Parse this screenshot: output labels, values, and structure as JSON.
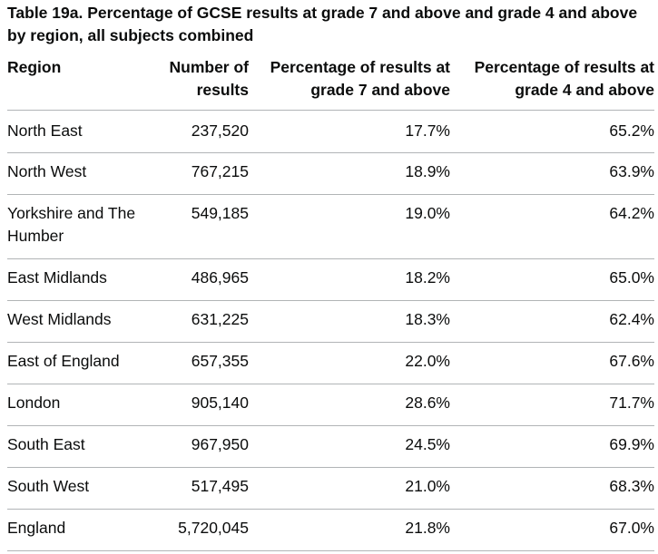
{
  "caption": "Table 19a. Percentage of GCSE results at grade 7 and above and grade 4 and above by region, all subjects combined",
  "headers": {
    "region": "Region",
    "count": "Number of results",
    "grade7": "Percentage of results at grade 7 and above",
    "grade4": "Percentage of results at grade 4 and above"
  },
  "rows": [
    {
      "region": "North East",
      "count": "237,520",
      "grade7": "17.7%",
      "grade4": "65.2%"
    },
    {
      "region": "North West",
      "count": "767,215",
      "grade7": "18.9%",
      "grade4": "63.9%"
    },
    {
      "region": "Yorkshire and The Humber",
      "count": "549,185",
      "grade7": "19.0%",
      "grade4": "64.2%"
    },
    {
      "region": "East Midlands",
      "count": "486,965",
      "grade7": "18.2%",
      "grade4": "65.0%"
    },
    {
      "region": "West Midlands",
      "count": "631,225",
      "grade7": "18.3%",
      "grade4": "62.4%"
    },
    {
      "region": "East of England",
      "count": "657,355",
      "grade7": "22.0%",
      "grade4": "67.6%"
    },
    {
      "region": "London",
      "count": "905,140",
      "grade7": "28.6%",
      "grade4": "71.7%"
    },
    {
      "region": "South East",
      "count": "967,950",
      "grade7": "24.5%",
      "grade4": "69.9%"
    },
    {
      "region": "South West",
      "count": "517,495",
      "grade7": "21.0%",
      "grade4": "68.3%"
    },
    {
      "region": "England",
      "count": "5,720,045",
      "grade7": "21.8%",
      "grade4": "67.0%"
    }
  ]
}
